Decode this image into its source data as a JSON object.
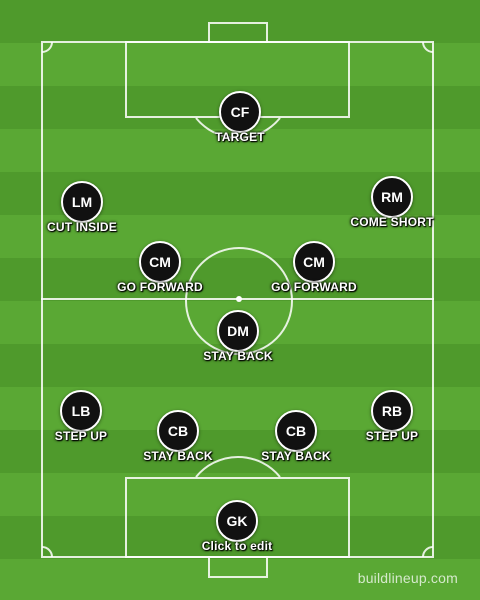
{
  "players": [
    {
      "id": "cf",
      "position": "CF",
      "instruction": "TARGET"
    },
    {
      "id": "lm",
      "position": "LM",
      "instruction": "CUT INSIDE"
    },
    {
      "id": "rm",
      "position": "RM",
      "instruction": "COME SHORT"
    },
    {
      "id": "cm-left",
      "position": "CM",
      "instruction": "GO FORWARD"
    },
    {
      "id": "cm-right",
      "position": "CM",
      "instruction": "GO FORWARD"
    },
    {
      "id": "dm",
      "position": "DM",
      "instruction": "STAY BACK"
    },
    {
      "id": "lb",
      "position": "LB",
      "instruction": "STEP UP"
    },
    {
      "id": "cb-left",
      "position": "CB",
      "instruction": "STAY BACK"
    },
    {
      "id": "cb-right",
      "position": "CB",
      "instruction": "STAY BACK"
    },
    {
      "id": "rb",
      "position": "RB",
      "instruction": "STEP UP"
    },
    {
      "id": "gk",
      "position": "GK",
      "instruction": "Click to edit"
    }
  ],
  "watermark": "buildlineup.com",
  "colors": {
    "pitch_dark": "#4f9a2c",
    "pitch_light": "#5aa834",
    "player_disc": "#111111",
    "lines": "#ffffff"
  }
}
